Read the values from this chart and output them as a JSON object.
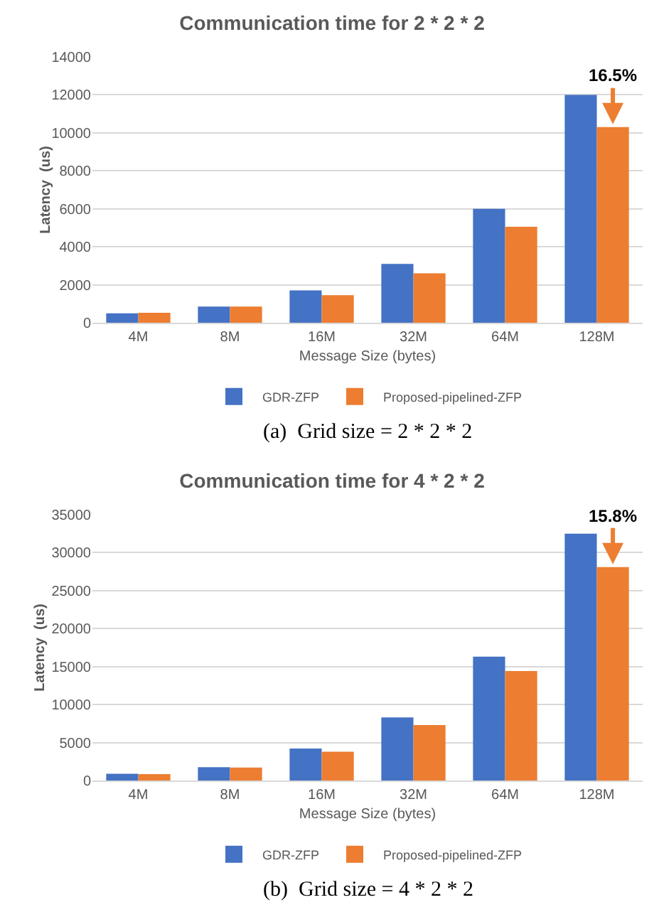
{
  "chart_data": [
    {
      "type": "bar",
      "title": "Communication time for 2 * 2 * 2",
      "xlabel": "Message Size (bytes)",
      "ylabel": "Latency  (us)",
      "categories": [
        "4M",
        "8M",
        "16M",
        "32M",
        "64M",
        "128M"
      ],
      "series": [
        {
          "name": "GDR-ZFP",
          "color": "#4472c4",
          "values": [
            500,
            850,
            1700,
            3100,
            6000,
            12000
          ]
        },
        {
          "name": "Proposed-pipelined-ZFP",
          "color": "#ed7d31",
          "values": [
            520,
            850,
            1450,
            2600,
            5050,
            10300
          ]
        }
      ],
      "ylim": [
        0,
        14000
      ],
      "yticks": [
        0,
        2000,
        4000,
        6000,
        8000,
        10000,
        12000,
        14000
      ],
      "grid": "y",
      "legend": "bottom",
      "annotations": [
        {
          "text": "16.5%",
          "x": "128M",
          "y": 10300
        },
        "(a)  Grid size = 2 * 2 * 2"
      ]
    },
    {
      "type": "bar",
      "title": "Communication time for 4 * 2 * 2",
      "xlabel": "Message Size (bytes)",
      "ylabel": "Latency  (us)",
      "categories": [
        "4M",
        "8M",
        "16M",
        "32M",
        "64M",
        "128M"
      ],
      "series": [
        {
          "name": "GDR-ZFP",
          "color": "#4472c4",
          "values": [
            900,
            1750,
            4200,
            8300,
            16300,
            32500
          ]
        },
        {
          "name": "Proposed-pipelined-ZFP",
          "color": "#ed7d31",
          "values": [
            850,
            1700,
            3800,
            7300,
            14400,
            28100
          ]
        }
      ],
      "ylim": [
        0,
        35000
      ],
      "yticks": [
        0,
        5000,
        10000,
        15000,
        20000,
        25000,
        30000,
        35000
      ],
      "grid": "y",
      "legend": "bottom",
      "annotations": [
        {
          "text": "15.8%",
          "x": "128M",
          "y": 28100
        },
        "(b)  Grid size = 4 * 2 * 2"
      ]
    }
  ]
}
